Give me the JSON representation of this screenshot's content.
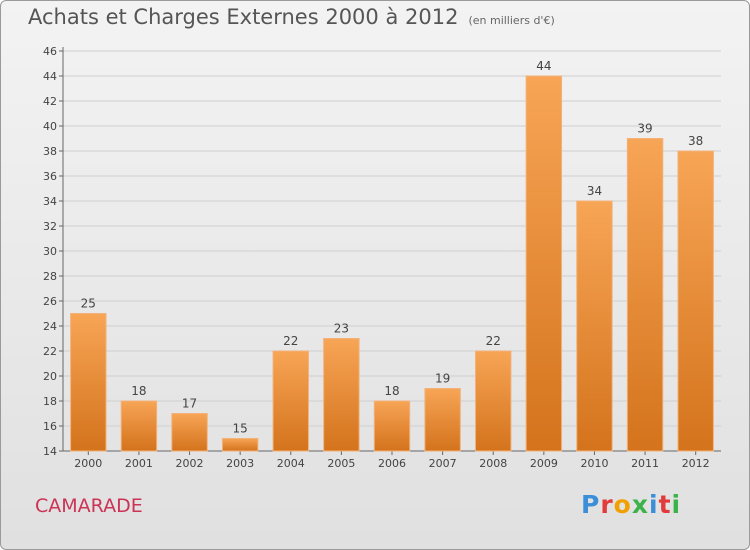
{
  "chart_data": {
    "type": "bar",
    "title": "Achats et Charges Externes 2000 à 2012",
    "unit": "(en milliers d'€)",
    "categories": [
      "2000",
      "2001",
      "2002",
      "2003",
      "2004",
      "2005",
      "2006",
      "2007",
      "2008",
      "2009",
      "2010",
      "2011",
      "2012"
    ],
    "values": [
      25,
      18,
      17,
      15,
      22,
      23,
      18,
      19,
      22,
      44,
      34,
      39,
      38
    ],
    "ylim": [
      14,
      46
    ],
    "yticks": [
      14,
      16,
      18,
      20,
      22,
      24,
      26,
      28,
      30,
      32,
      34,
      36,
      38,
      40,
      42,
      44,
      46
    ],
    "grid": true,
    "bar_color": "#f08a2c"
  },
  "footer": {
    "commune": "CAMARADE",
    "logo_letters": [
      "P",
      "r",
      "o",
      "x",
      "i",
      "t",
      "i"
    ],
    "logo_colors": [
      "#3a8fd8",
      "#e23b3b",
      "#f0a000",
      "#3cb34a",
      "#3a8fd8",
      "#e23b3b",
      "#3cb34a"
    ]
  }
}
